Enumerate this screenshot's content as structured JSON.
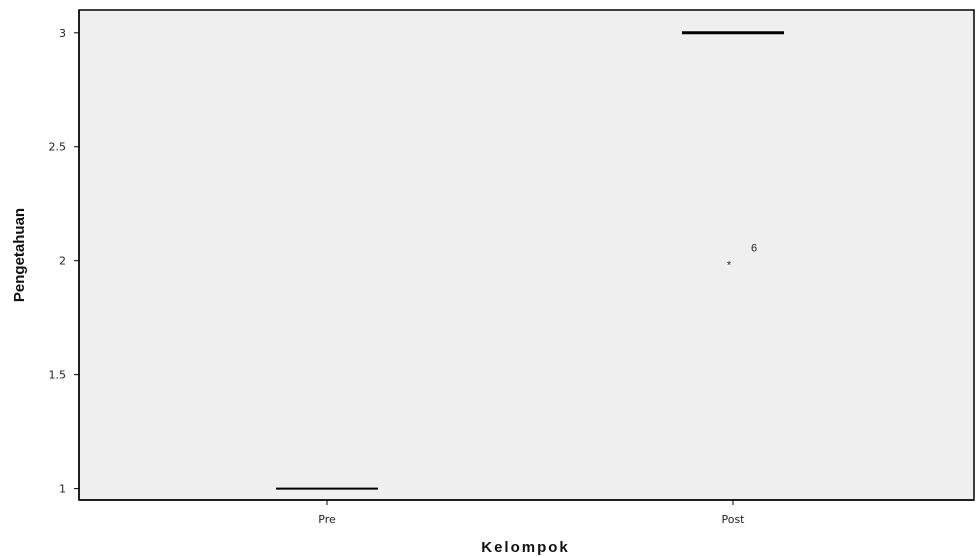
{
  "chart_data": {
    "type": "boxplot",
    "xlabel": "Kelompok",
    "ylabel": "Pengetahuan",
    "categories": [
      "Pre",
      "Post"
    ],
    "y_ticks": [
      "1",
      "1.5",
      "2",
      "2.5",
      "3"
    ],
    "ylim": [
      0.95,
      3.1
    ],
    "grid": false,
    "boxes": [
      {
        "category": "Pre",
        "median": 1
      },
      {
        "category": "Post",
        "median": 3
      }
    ],
    "outliers": [
      {
        "category": "Post",
        "value": 2,
        "marker": "*",
        "label": "6"
      }
    ],
    "colors": {
      "plot_background": "#efefef",
      "line": "#000000"
    }
  }
}
